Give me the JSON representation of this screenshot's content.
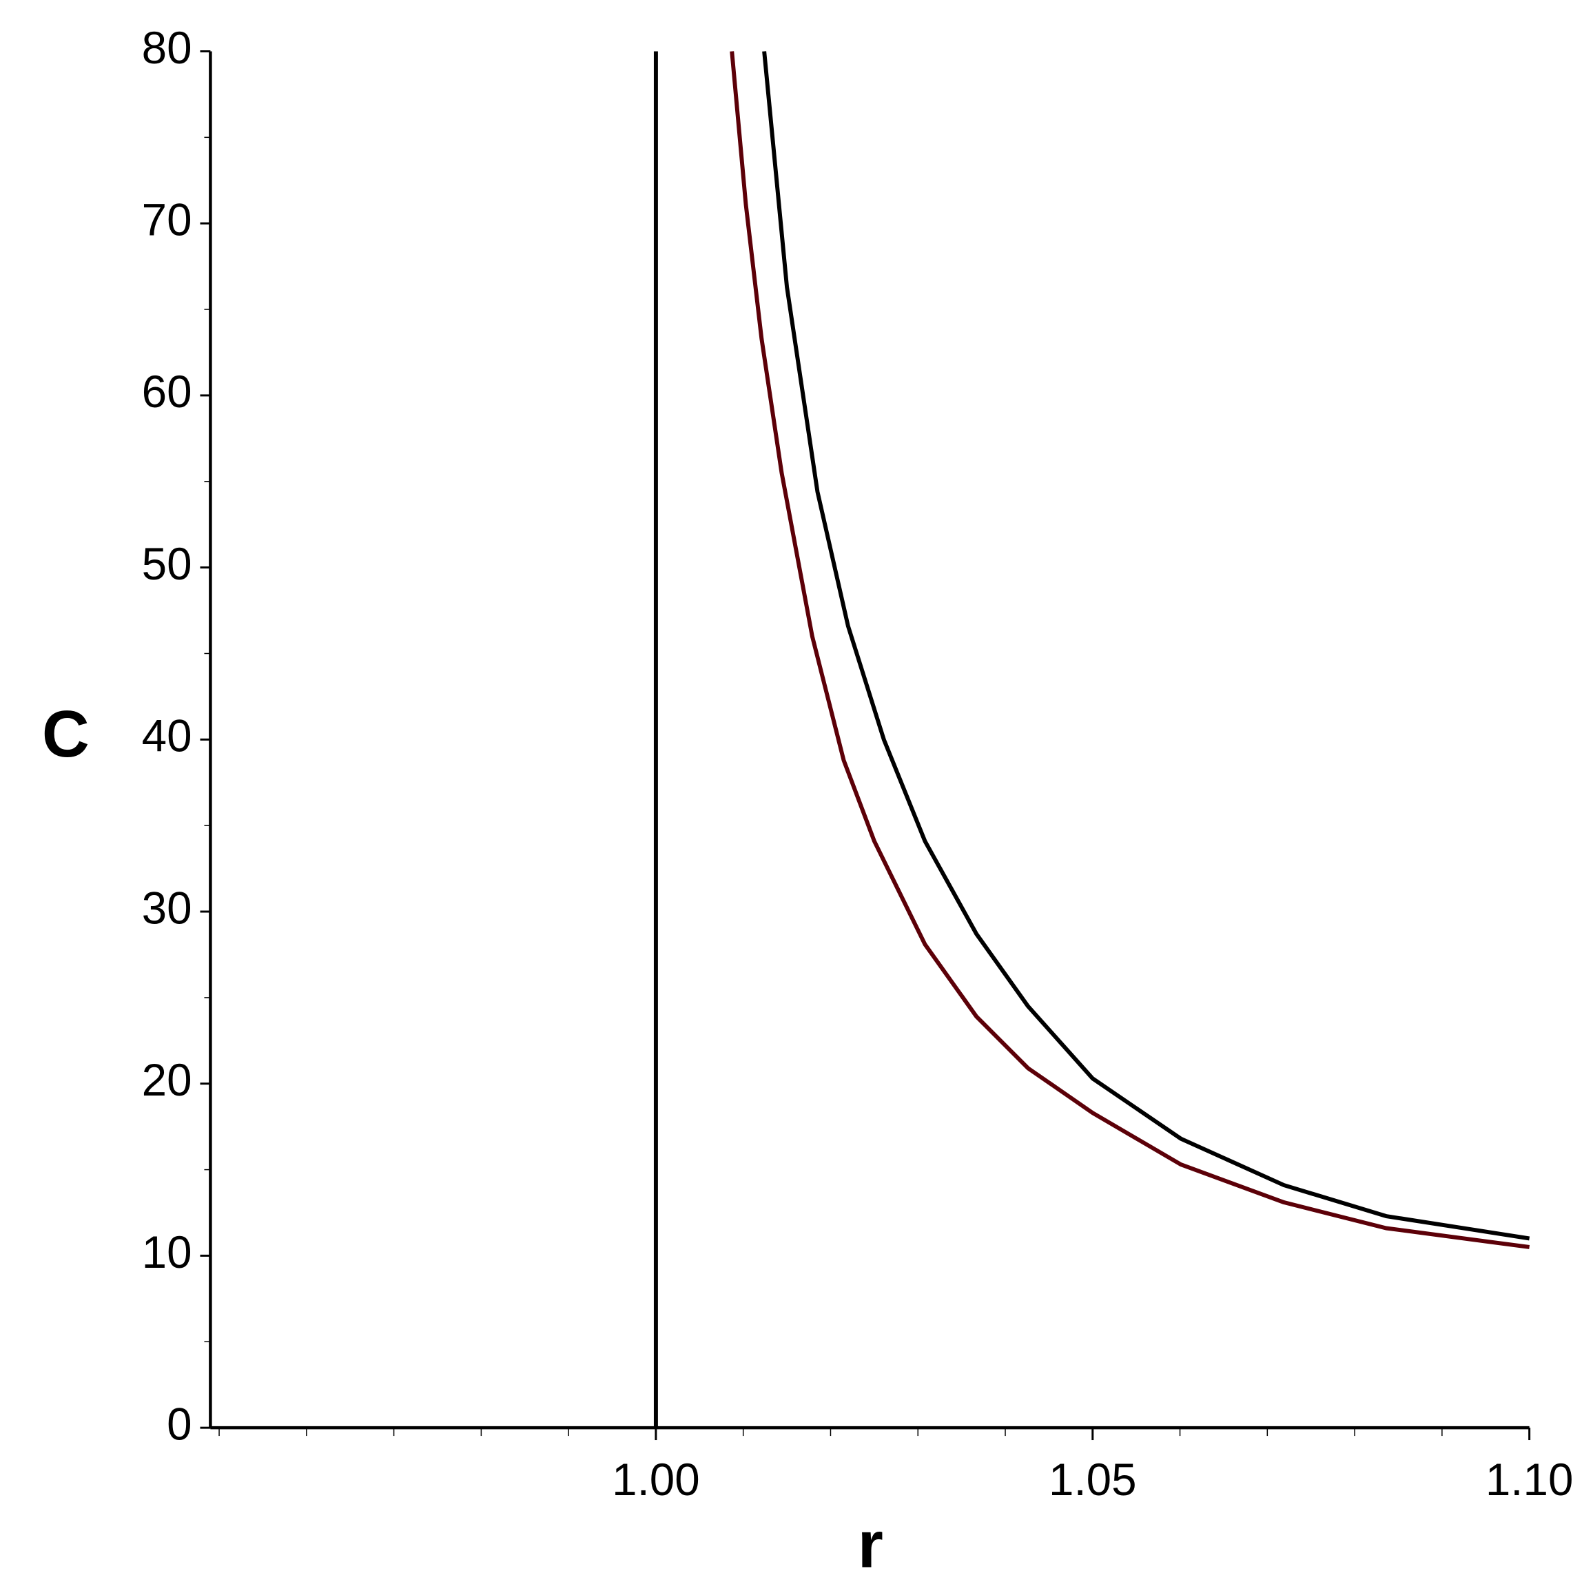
{
  "chart_data": {
    "type": "line",
    "xlabel": "r",
    "ylabel": "C",
    "xlim": [
      0.949,
      1.1
    ],
    "ylim": [
      0,
      80
    ],
    "xticks": [
      {
        "value": 1.0,
        "label": "1.00"
      },
      {
        "value": 1.05,
        "label": "1.05"
      },
      {
        "value": 1.1,
        "label": "1.10"
      }
    ],
    "xminorticks": [
      0.95,
      0.96,
      0.97,
      0.98,
      0.99,
      1.01,
      1.02,
      1.03,
      1.04,
      1.06,
      1.07,
      1.08,
      1.09
    ],
    "yticks": [
      0,
      10,
      20,
      30,
      40,
      50,
      60,
      70,
      80
    ],
    "yminorticks": [
      5,
      15,
      25,
      35,
      45,
      55,
      65,
      75
    ],
    "series": [
      {
        "color": "#000000",
        "x": [
          1.0,
          1.0
        ],
        "values": [
          0,
          80
        ]
      },
      {
        "color": "#5c0008",
        "x": [
          1.0087,
          1.0103,
          1.0121,
          1.0144,
          1.0179,
          1.0215,
          1.025,
          1.0308,
          1.0367,
          1.0426,
          1.05,
          1.0601,
          1.0719,
          1.0836,
          1.1
        ],
        "values": [
          80,
          71.1,
          63.3,
          55.5,
          46.0,
          38.8,
          34.1,
          28.1,
          23.9,
          20.9,
          18.3,
          15.3,
          13.1,
          11.6,
          10.5
        ]
      },
      {
        "color": "#000000",
        "x": [
          1.0124,
          1.015,
          1.0185,
          1.022,
          1.0261,
          1.0308,
          1.0367,
          1.0426,
          1.05,
          1.0601,
          1.0719,
          1.0836,
          1.1
        ],
        "values": [
          80,
          66.3,
          54.4,
          46.6,
          40.0,
          34.1,
          28.7,
          24.5,
          20.3,
          16.8,
          14.1,
          12.3,
          11.0
        ]
      }
    ]
  }
}
